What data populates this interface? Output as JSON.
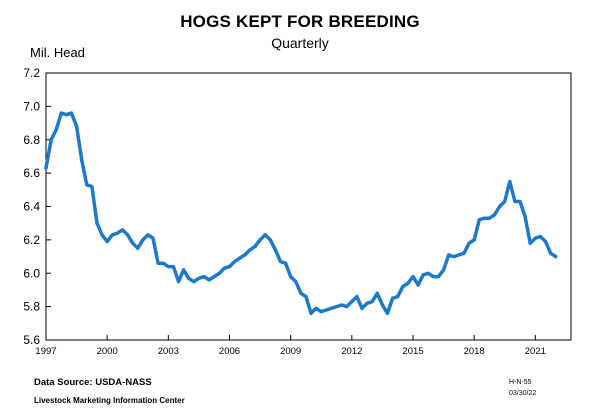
{
  "header": {
    "title": "HOGS KEPT FOR BREEDING",
    "subtitle": "Quarterly",
    "ylabel": "Mil. Head"
  },
  "footer": {
    "source": "Data Source:  USDA-NASS",
    "center": "Livestock Marketing Information Center",
    "code": "H-N-55",
    "date": "03/30/22"
  },
  "colors": {
    "line": "#1f78c8"
  },
  "chart_data": {
    "type": "line",
    "title": "HOGS KEPT FOR BREEDING",
    "subtitle": "Quarterly",
    "ylabel": "Mil. Head",
    "xlabel": "",
    "ylim": [
      5.6,
      7.2
    ],
    "yticks": [
      "5.6",
      "5.8",
      "6.0",
      "6.2",
      "6.4",
      "6.6",
      "6.8",
      "7.0",
      "7.2"
    ],
    "xlim": [
      1997,
      2022.75
    ],
    "xticks": [
      "1997",
      "2000",
      "2003",
      "2006",
      "2009",
      "2012",
      "2015",
      "2018",
      "2021"
    ],
    "grid": false,
    "legend": "none",
    "series": [
      {
        "x": [
          1997.0,
          1997.25,
          1997.5,
          1997.75,
          1998.0,
          1998.25,
          1998.5,
          1998.75,
          1999.0,
          1999.25,
          1999.5,
          1999.75,
          2000.0,
          2000.25,
          2000.5,
          2000.75,
          2001.0,
          2001.25,
          2001.5,
          2001.75,
          2002.0,
          2002.25,
          2002.5,
          2002.75,
          2003.0,
          2003.25,
          2003.5,
          2003.75,
          2004.0,
          2004.25,
          2004.5,
          2004.75,
          2005.0,
          2005.25,
          2005.5,
          2005.75,
          2006.0,
          2006.25,
          2006.5,
          2006.75,
          2007.0,
          2007.25,
          2007.5,
          2007.75,
          2008.0,
          2008.25,
          2008.5,
          2008.75,
          2009.0,
          2009.25,
          2009.5,
          2009.75,
          2010.0,
          2010.25,
          2010.5,
          2010.75,
          2011.0,
          2011.25,
          2011.5,
          2011.75,
          2012.0,
          2012.25,
          2012.5,
          2012.75,
          2013.0,
          2013.25,
          2013.5,
          2013.75,
          2014.0,
          2014.25,
          2014.5,
          2014.75,
          2015.0,
          2015.25,
          2015.5,
          2015.75,
          2016.0,
          2016.25,
          2016.5,
          2016.75,
          2017.0,
          2017.25,
          2017.5,
          2017.75,
          2018.0,
          2018.25,
          2018.5,
          2018.75,
          2019.0,
          2019.25,
          2019.5,
          2019.75,
          2020.0,
          2020.25,
          2020.5,
          2020.75,
          2021.0,
          2021.25,
          2021.5,
          2021.75,
          2022.0
        ],
        "values": [
          6.63,
          6.8,
          6.86,
          6.96,
          6.95,
          6.96,
          6.88,
          6.68,
          6.53,
          6.52,
          6.3,
          6.23,
          6.19,
          6.23,
          6.24,
          6.26,
          6.23,
          6.18,
          6.15,
          6.2,
          6.23,
          6.21,
          6.06,
          6.06,
          6.04,
          6.04,
          5.95,
          6.02,
          5.97,
          5.95,
          5.97,
          5.98,
          5.96,
          5.98,
          6.0,
          6.03,
          6.04,
          6.07,
          6.09,
          6.11,
          6.14,
          6.16,
          6.2,
          6.23,
          6.2,
          6.14,
          6.07,
          6.06,
          5.98,
          5.95,
          5.88,
          5.86,
          5.76,
          5.79,
          5.77,
          5.78,
          5.79,
          5.8,
          5.81,
          5.8,
          5.83,
          5.86,
          5.79,
          5.82,
          5.83,
          5.88,
          5.81,
          5.76,
          5.85,
          5.86,
          5.92,
          5.94,
          5.98,
          5.93,
          5.99,
          6.0,
          5.98,
          5.98,
          6.02,
          6.11,
          6.1,
          6.11,
          6.12,
          6.18,
          6.2,
          6.32,
          6.33,
          6.33,
          6.35,
          6.4,
          6.43,
          6.55,
          6.43,
          6.43,
          6.34,
          6.18,
          6.21,
          6.22,
          6.19,
          6.12,
          6.1
        ]
      }
    ]
  }
}
